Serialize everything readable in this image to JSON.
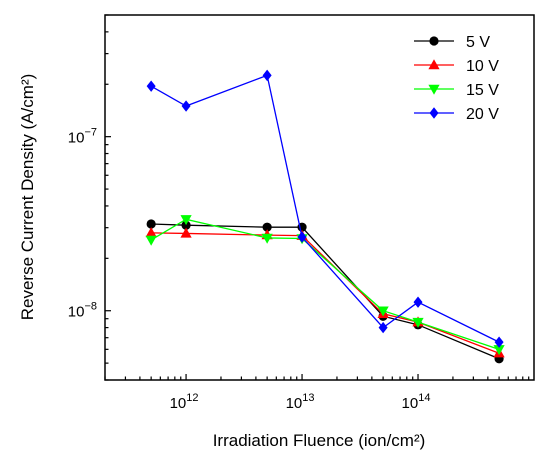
{
  "chart_data": {
    "type": "line",
    "xscale": "log",
    "yscale": "log",
    "xlim": [
      200000000000.0,
      1000000000000000.0
    ],
    "ylim": [
      4e-09,
      5e-07
    ],
    "grid": false,
    "legend_position": "top-right",
    "xlabel": "Irradiation Fluence (ion/cm²)",
    "ylabel": "Reverse Current Density (A/cm²)",
    "x_ticks": [
      {
        "value": 1000000000000.0,
        "base": "10",
        "exp": "12"
      },
      {
        "value": 10000000000000.0,
        "base": "10",
        "exp": "13"
      },
      {
        "value": 100000000000000.0,
        "base": "10",
        "exp": "14"
      }
    ],
    "y_ticks": [
      {
        "value": 1e-08,
        "base": "10",
        "exp": "−8"
      },
      {
        "value": 1e-07,
        "base": "10",
        "exp": "−7"
      }
    ],
    "x": [
      500000000000.0,
      1000000000000.0,
      5000000000000.0,
      10000000000000.0,
      50000000000000.0,
      100000000000000.0,
      500000000000000.0
    ],
    "series": [
      {
        "name": "5 V",
        "color": "#000000",
        "marker": "circle",
        "values": [
          3.15e-08,
          3.1e-08,
          3.02e-08,
          3.02e-08,
          9.3e-09,
          8.3e-09,
          5.3e-09
        ]
      },
      {
        "name": "10 V",
        "color": "#ff0000",
        "marker": "triangle-up",
        "values": [
          2.8e-08,
          2.78e-08,
          2.72e-08,
          2.7e-08,
          9.6e-09,
          8.6e-09,
          5.7e-09
        ]
      },
      {
        "name": "15 V",
        "color": "#00ff00",
        "marker": "triangle-down",
        "values": [
          2.55e-08,
          3.35e-08,
          2.62e-08,
          2.6e-08,
          1e-08,
          8.6e-09,
          6e-09
        ]
      },
      {
        "name": "20 V",
        "color": "#0000ff",
        "marker": "diamond",
        "values": [
          1.95e-07,
          1.5e-07,
          2.25e-07,
          2.65e-08,
          8e-09,
          1.12e-08,
          6.6e-09
        ]
      }
    ]
  }
}
